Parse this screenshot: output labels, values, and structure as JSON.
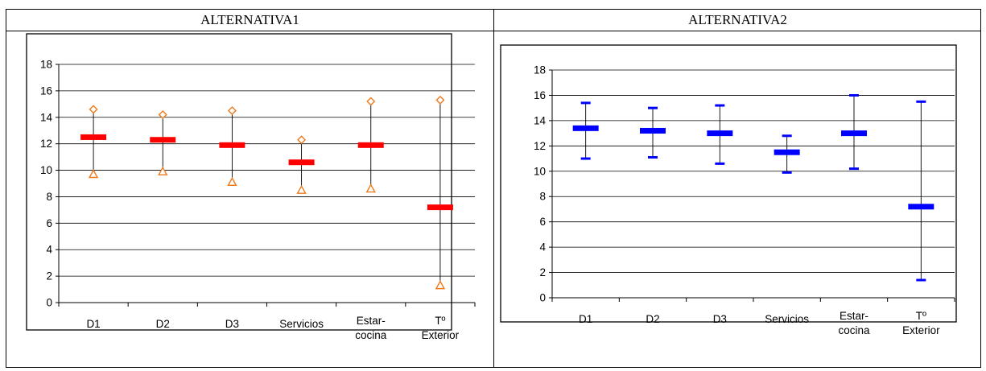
{
  "table": {
    "header_left": "ALTERNATIVA1",
    "header_right": "ALTERNATIVA2"
  },
  "chart_data": [
    {
      "type": "stock",
      "title": "",
      "xlabel": "",
      "ylabel": "",
      "categories": [
        "D1",
        "D2",
        "D3",
        "Servicios",
        "Estar-cocina",
        "Tº Exterior"
      ],
      "ylim": [
        0,
        18
      ],
      "yticks": [
        0,
        2,
        4,
        6,
        8,
        10,
        12,
        14,
        16,
        18
      ],
      "grid": true,
      "legend": "none",
      "series": [
        {
          "role": "high",
          "marker": "diamond",
          "color": "#ee7a1c",
          "values": [
            14.6,
            14.2,
            14.5,
            12.3,
            15.2,
            15.3
          ]
        },
        {
          "role": "low",
          "marker": "triangle",
          "color": "#ee7a1c",
          "values": [
            9.7,
            9.9,
            9.1,
            8.5,
            8.6,
            1.3
          ]
        },
        {
          "role": "mean",
          "marker": "bar",
          "color": "#ff0000",
          "values": [
            12.5,
            12.3,
            11.9,
            10.6,
            11.9,
            7.2
          ]
        }
      ]
    },
    {
      "type": "stock",
      "title": "",
      "xlabel": "",
      "ylabel": "",
      "categories": [
        "D1",
        "D2",
        "D3",
        "Servicios",
        "Estar-cocina",
        "Tº Exterior"
      ],
      "ylim": [
        0,
        18
      ],
      "yticks": [
        0,
        2,
        4,
        6,
        8,
        10,
        12,
        14,
        16,
        18
      ],
      "grid": true,
      "legend": "none",
      "series": [
        {
          "role": "high",
          "marker": "dash",
          "color": "#0000ff",
          "values": [
            15.4,
            15.0,
            15.2,
            12.8,
            16.0,
            15.5
          ]
        },
        {
          "role": "low",
          "marker": "dash",
          "color": "#0000ff",
          "values": [
            11.0,
            11.1,
            10.6,
            9.9,
            10.2,
            1.4
          ]
        },
        {
          "role": "mean",
          "marker": "bar",
          "color": "#0000ff",
          "values": [
            13.4,
            13.2,
            13.0,
            11.5,
            13.0,
            7.2
          ]
        }
      ]
    }
  ]
}
